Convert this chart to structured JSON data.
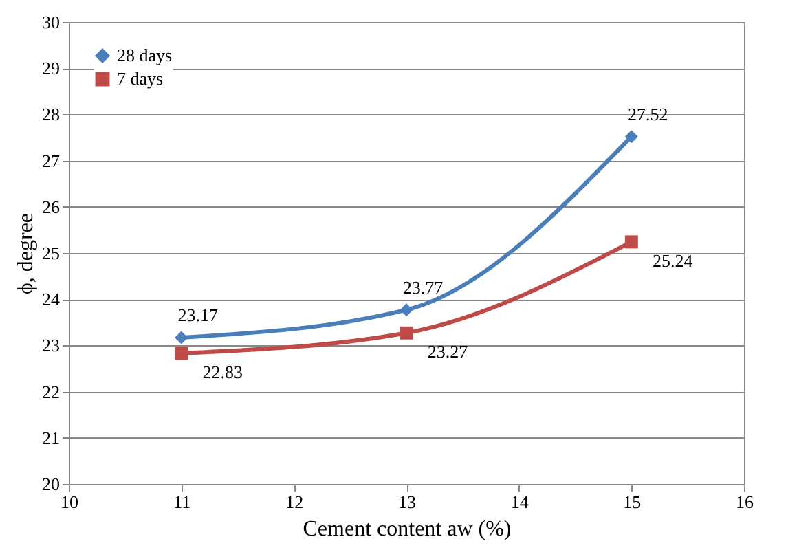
{
  "chart_data": {
    "type": "line",
    "xlabel": "Cement content aw (%)",
    "ylabel": "ϕ, degree",
    "x": [
      11,
      13,
      15
    ],
    "series": [
      {
        "name": "28 days",
        "color": "#4a7ebb",
        "marker": "diamond",
        "values": [
          23.17,
          23.77,
          27.52
        ]
      },
      {
        "name": "7 days",
        "color": "#be4b48",
        "marker": "square",
        "values": [
          22.83,
          23.27,
          25.24
        ]
      }
    ],
    "xlim": [
      10,
      16
    ],
    "xticks": [
      10,
      11,
      12,
      13,
      14,
      15,
      16
    ],
    "ylim": [
      20,
      30
    ],
    "yticks": [
      20,
      21,
      22,
      23,
      24,
      25,
      26,
      27,
      28,
      29,
      30
    ],
    "grid": "y",
    "legend": "top left",
    "data_labels": true
  }
}
